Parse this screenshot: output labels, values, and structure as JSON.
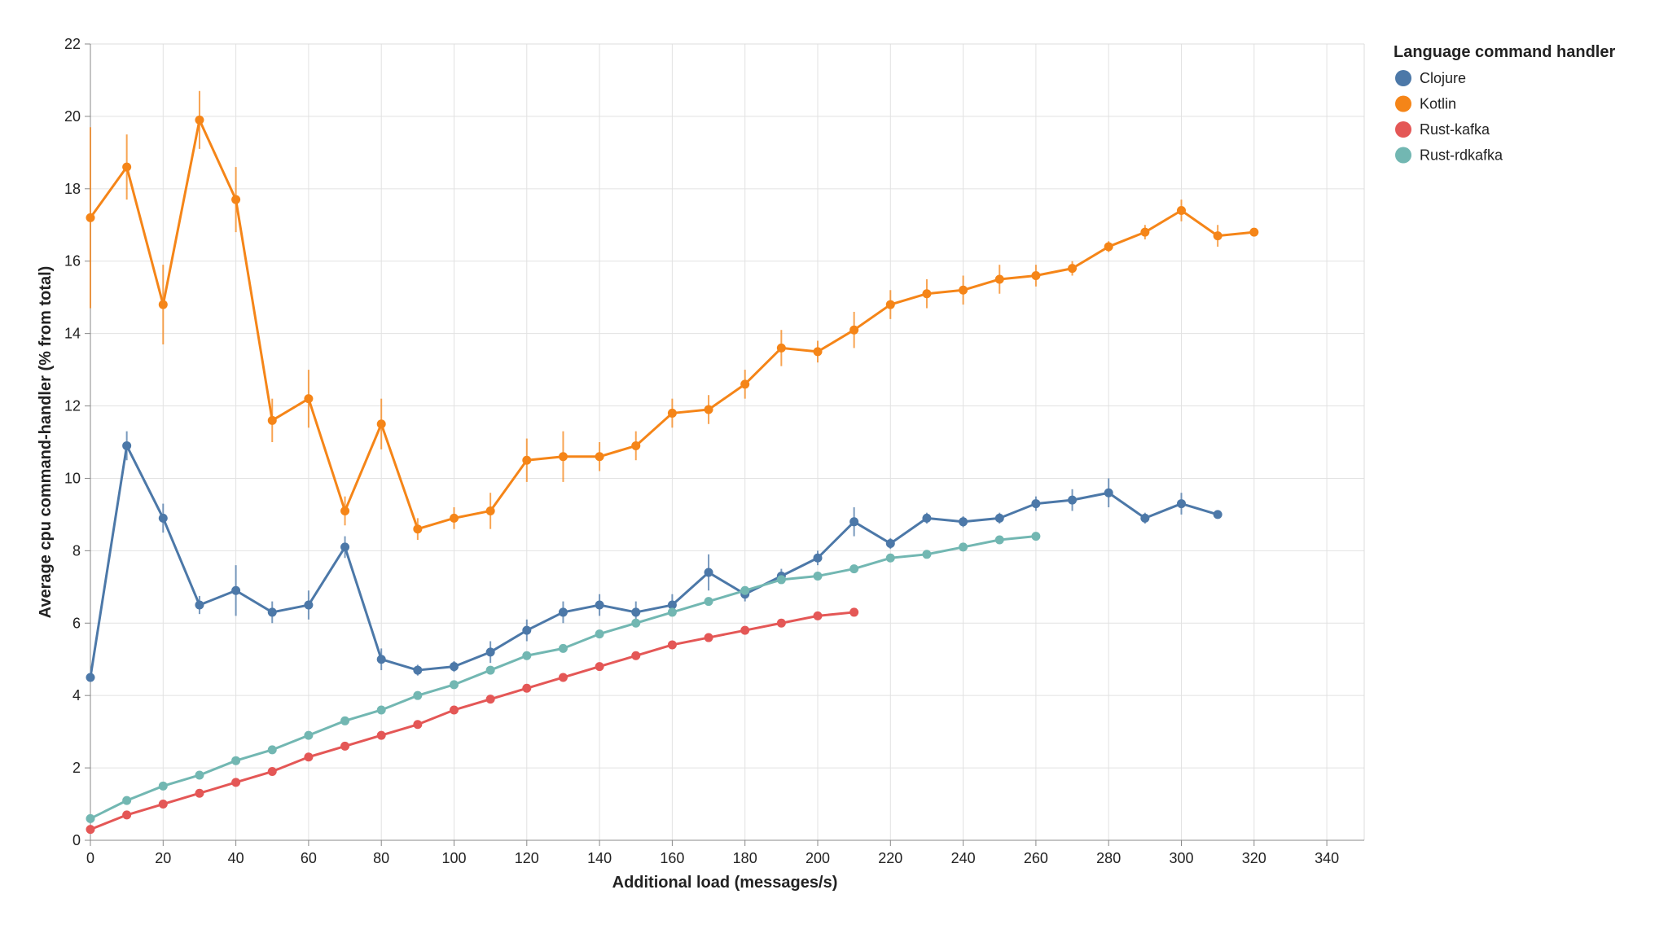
{
  "chart_data": {
    "type": "line",
    "xlabel": "Additional load (messages/s)",
    "ylabel": "Average cpu command-handler (% from total)",
    "xlim": [
      0,
      350
    ],
    "ylim": [
      0,
      22
    ],
    "x_ticks": [
      0,
      20,
      40,
      60,
      80,
      100,
      120,
      140,
      160,
      180,
      200,
      220,
      240,
      260,
      280,
      300,
      320,
      340
    ],
    "y_ticks": [
      0,
      2,
      4,
      6,
      8,
      10,
      12,
      14,
      16,
      18,
      20,
      22
    ],
    "grid": true,
    "legend": {
      "title": "Language command handler",
      "position": "top-right"
    },
    "series": [
      {
        "name": "Clojure",
        "color": "#4c78a8",
        "x": [
          0,
          10,
          20,
          30,
          40,
          50,
          60,
          70,
          80,
          90,
          100,
          110,
          120,
          130,
          140,
          150,
          160,
          170,
          180,
          190,
          200,
          210,
          220,
          230,
          240,
          250,
          260,
          270,
          280,
          290,
          300,
          310
        ],
        "y": [
          4.5,
          10.9,
          8.9,
          6.5,
          6.9,
          6.3,
          6.5,
          8.1,
          5.0,
          4.7,
          4.8,
          5.2,
          5.8,
          6.3,
          6.5,
          6.3,
          6.5,
          7.4,
          6.8,
          7.3,
          7.8,
          8.8,
          8.2,
          8.9,
          8.8,
          8.9,
          9.3,
          9.4,
          9.6,
          8.9,
          9.3,
          9.0
        ],
        "err": [
          0,
          0.4,
          0.4,
          0.25,
          0.7,
          0.3,
          0.4,
          0.3,
          0.3,
          0.15,
          0.15,
          0.3,
          0.3,
          0.3,
          0.3,
          0.3,
          0.3,
          0.5,
          0.2,
          0.2,
          0.2,
          0.4,
          0.15,
          0.15,
          0.15,
          0.15,
          0.2,
          0.3,
          0.4,
          0.15,
          0.3,
          0.1
        ]
      },
      {
        "name": "Kotlin",
        "color": "#f58518",
        "x": [
          0,
          10,
          20,
          30,
          40,
          50,
          60,
          70,
          80,
          90,
          100,
          110,
          120,
          130,
          140,
          150,
          160,
          170,
          180,
          190,
          200,
          210,
          220,
          230,
          240,
          250,
          260,
          270,
          280,
          290,
          300,
          310,
          320
        ],
        "y": [
          17.2,
          18.6,
          14.8,
          19.9,
          17.7,
          11.6,
          12.2,
          9.1,
          11.5,
          8.6,
          8.9,
          9.1,
          10.5,
          10.6,
          10.6,
          10.9,
          11.8,
          11.9,
          12.6,
          13.6,
          13.5,
          14.1,
          14.8,
          15.1,
          15.2,
          15.5,
          15.6,
          15.8,
          16.4,
          16.8,
          17.4,
          16.7,
          16.8
        ],
        "err": [
          2.5,
          0.9,
          1.1,
          0.8,
          0.9,
          0.6,
          0.8,
          0.4,
          0.7,
          0.3,
          0.3,
          0.5,
          0.6,
          0.7,
          0.4,
          0.4,
          0.4,
          0.4,
          0.4,
          0.5,
          0.3,
          0.5,
          0.4,
          0.4,
          0.4,
          0.4,
          0.3,
          0.2,
          0.15,
          0.2,
          0.3,
          0.3,
          0.1
        ]
      },
      {
        "name": "Rust-kafka",
        "color": "#e45756",
        "x": [
          0,
          10,
          20,
          30,
          40,
          50,
          60,
          70,
          80,
          90,
          100,
          110,
          120,
          130,
          140,
          150,
          160,
          170,
          180,
          190,
          200,
          210
        ],
        "y": [
          0.3,
          0.7,
          1.0,
          1.3,
          1.6,
          1.9,
          2.3,
          2.6,
          2.9,
          3.2,
          3.6,
          3.9,
          4.2,
          4.5,
          4.8,
          5.1,
          5.4,
          5.6,
          5.8,
          6.0,
          6.2,
          6.3
        ],
        "err": []
      },
      {
        "name": "Rust-rdkafka",
        "color": "#72b7b2",
        "x": [
          0,
          10,
          20,
          30,
          40,
          50,
          60,
          70,
          80,
          90,
          100,
          110,
          120,
          130,
          140,
          150,
          160,
          170,
          180,
          190,
          200,
          210,
          220,
          230,
          240,
          250,
          260
        ],
        "y": [
          0.6,
          1.1,
          1.5,
          1.8,
          2.2,
          2.5,
          2.9,
          3.3,
          3.6,
          4.0,
          4.3,
          4.7,
          5.1,
          5.3,
          5.7,
          6.0,
          6.3,
          6.6,
          6.9,
          7.2,
          7.3,
          7.5,
          7.8,
          7.9,
          8.1,
          8.3,
          8.4
        ],
        "err": []
      }
    ]
  }
}
